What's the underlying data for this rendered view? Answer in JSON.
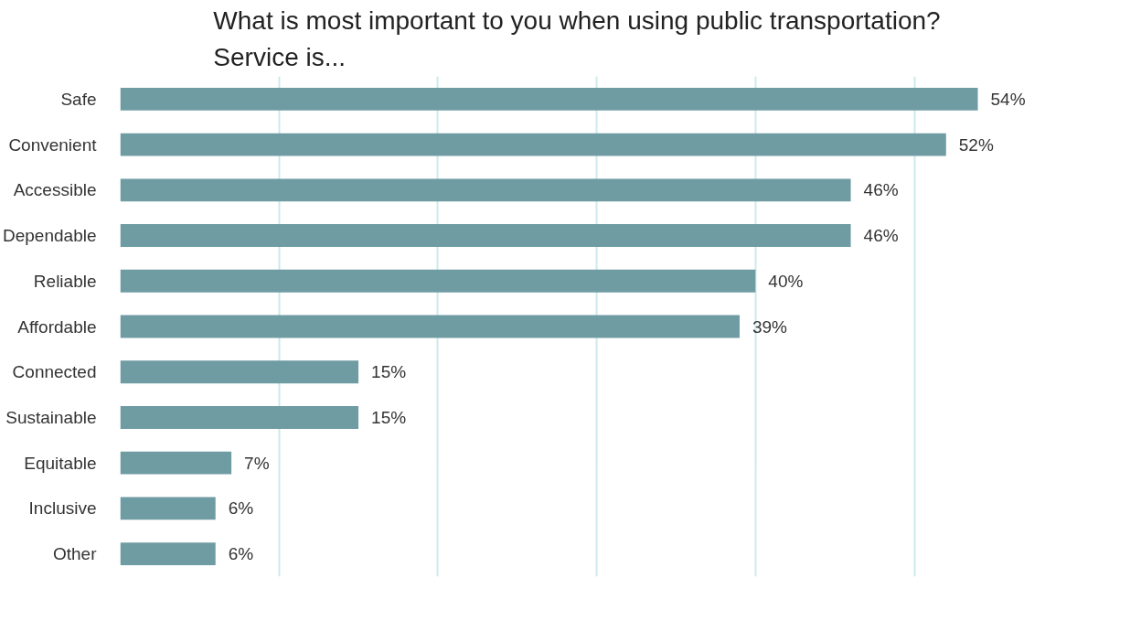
{
  "chart_data": {
    "type": "bar",
    "orientation": "horizontal",
    "title": "What is most important to you when using public transportation?\nService is...",
    "categories": [
      "Safe",
      "Convenient",
      "Accessible",
      "Dependable",
      "Reliable",
      "Affordable",
      "Connected",
      "Sustainable",
      "Equitable",
      "Inclusive",
      "Other"
    ],
    "values": [
      54,
      52,
      46,
      46,
      40,
      39,
      15,
      15,
      7,
      6,
      6
    ],
    "value_labels": [
      "54%",
      "52%",
      "46%",
      "46%",
      "40%",
      "39%",
      "15%",
      "15%",
      "7%",
      "6%",
      "6%"
    ],
    "color": "#6f9ca3",
    "grid": "x",
    "tick_labels": "y"
  }
}
